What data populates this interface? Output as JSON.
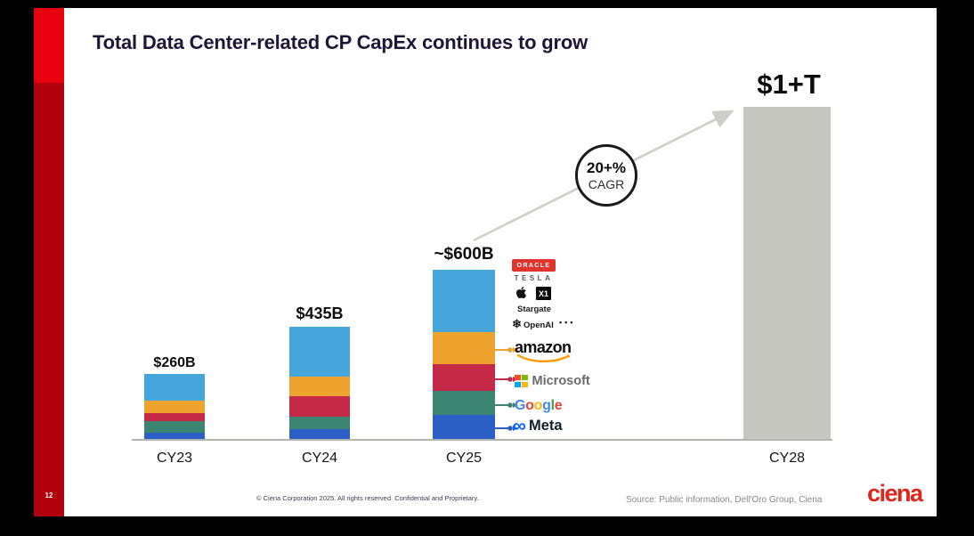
{
  "slide": {
    "page_number": "12",
    "title": "Total Data Center-related CP CapEx continues to grow",
    "accent_red_bright": "#e8000e",
    "accent_red_dark": "#b2000f",
    "footer": {
      "copyright": "© Ciena Corporation 2025. All rights reserved. Confidential and Proprietary.",
      "source": "Source: Public information, Dell'Oro Group, Ciena",
      "brand": "ciena"
    }
  },
  "chart_data": {
    "type": "bar",
    "stacked": true,
    "title": "Total Data Center-related CP CapEx continues to grow",
    "unit": "$B",
    "grid": false,
    "categories": [
      "CY23",
      "CY24",
      "CY25",
      "CY28"
    ],
    "bar_labels": [
      "$260B",
      "$435B",
      "~$600B",
      "$1+T"
    ],
    "totals_billions": [
      260,
      435,
      600,
      1000
    ],
    "series": [
      {
        "name": "Meta",
        "color": "#2b5fc5",
        "values": [
          24,
          38,
          85,
          null
        ]
      },
      {
        "name": "Google",
        "color": "#3d8573",
        "values": [
          46,
          48,
          85,
          null
        ]
      },
      {
        "name": "Microsoft",
        "color": "#c42a48",
        "values": [
          32,
          79,
          95,
          null
        ]
      },
      {
        "name": "Amazon",
        "color": "#efa32f",
        "values": [
          52,
          76,
          114,
          null
        ]
      },
      {
        "name": "Others",
        "color": "#46a5da",
        "values": [
          106,
          194,
          221,
          null
        ]
      }
    ],
    "cy28_bar_color": "#c6c7c1",
    "trend_arrow_color": "#cdcdc9",
    "annotation": {
      "line1": "20+%",
      "line2": "CAGR"
    }
  },
  "logos": {
    "oracle": {
      "text": "ORACLE",
      "bg": "#e2342c"
    },
    "tesla": {
      "text": "TESLA"
    },
    "xai": {
      "text": "X1"
    },
    "stargate": {
      "text": "Stargate"
    },
    "openai": {
      "text": "OpenAI"
    },
    "ellipsis": "•••",
    "amazon": {
      "text": "amazon",
      "smile_color": "#ff9900"
    },
    "microsoft": {
      "text": "Microsoft",
      "squares": [
        "#f25022",
        "#7fba00",
        "#00a4ef",
        "#ffb900"
      ]
    },
    "google": {
      "letters": [
        {
          "ch": "G",
          "color": "#4285f4"
        },
        {
          "ch": "o",
          "color": "#ea4335"
        },
        {
          "ch": "o",
          "color": "#fbbc05"
        },
        {
          "ch": "g",
          "color": "#4285f4"
        },
        {
          "ch": "l",
          "color": "#34a853"
        },
        {
          "ch": "e",
          "color": "#ea4335"
        }
      ]
    },
    "meta": {
      "text": "Meta",
      "infinity": "∞",
      "color": "#0866ff"
    }
  }
}
